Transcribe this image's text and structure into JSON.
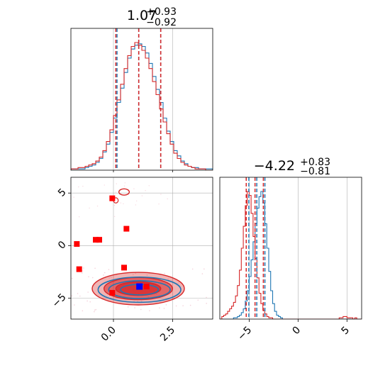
{
  "chart_data": [
    {
      "type": "histogram",
      "panel": "marginal-param1",
      "title": {
        "median": "1.07",
        "upper": "+0.93",
        "lower": "−0.92"
      },
      "xlim": [
        -1.8,
        4.2
      ],
      "bins_left_edge": -1.8,
      "bin_width": 0.15,
      "series": [
        {
          "name": "",
          "color": "#1f77b4",
          "counts": [
            1,
            1,
            1,
            1,
            2,
            3,
            4,
            6,
            9,
            14,
            20,
            29,
            40,
            52,
            63,
            75,
            86,
            93,
            96,
            97,
            95,
            90,
            82,
            72,
            62,
            52,
            40,
            30,
            22,
            15,
            11,
            7,
            5,
            3,
            2,
            2,
            1,
            1,
            1,
            1
          ]
        },
        {
          "name": "",
          "color": "#d62728",
          "counts": [
            1,
            1,
            2,
            2,
            3,
            4,
            5,
            7,
            10,
            15,
            22,
            31,
            42,
            54,
            66,
            78,
            88,
            95,
            98,
            96,
            92,
            86,
            78,
            68,
            58,
            47,
            37,
            28,
            20,
            13,
            9,
            6,
            4,
            3,
            2,
            1,
            1,
            1,
            0,
            0
          ]
        }
      ],
      "quantile_lines": [
        {
          "color": "#1f77b4",
          "values": [
            0.15,
            1.07,
            2.0
          ]
        },
        {
          "color": "#d62728",
          "values": [
            0.1,
            1.07,
            2.0
          ]
        }
      ]
    },
    {
      "type": "histogram",
      "panel": "marginal-param2",
      "title": {
        "median": "−4.22",
        "upper": "+0.83",
        "lower": "−0.81"
      },
      "xlim": [
        -8.0,
        6.5
      ],
      "xticks": [
        "−5",
        "0",
        "5"
      ],
      "xtick_values": [
        -5,
        0,
        5
      ],
      "bins_left_edge": -8.0,
      "bin_width": 0.2,
      "series": [
        {
          "name": "",
          "color": "#1f77b4",
          "counts": [
            0,
            0,
            0,
            0,
            0,
            0,
            0,
            1,
            1,
            2,
            3,
            5,
            8,
            14,
            22,
            33,
            46,
            60,
            74,
            86,
            95,
            99,
            90,
            74,
            55,
            37,
            22,
            12,
            6,
            3,
            2,
            1,
            0,
            0,
            0,
            0,
            0,
            0,
            0,
            0,
            0,
            0,
            0,
            0,
            0,
            0,
            0,
            0,
            0,
            0,
            0,
            0,
            0,
            0,
            0,
            0,
            0,
            0,
            0,
            0,
            0,
            0,
            0,
            0,
            0,
            0,
            0,
            0,
            0,
            0,
            0,
            0,
            0
          ]
        },
        {
          "name": "",
          "color": "#d62728",
          "counts": [
            0,
            2,
            3,
            4,
            6,
            8,
            10,
            13,
            18,
            26,
            38,
            55,
            72,
            88,
            99,
            96,
            82,
            64,
            47,
            32,
            20,
            12,
            7,
            4,
            2,
            1,
            1,
            0,
            0,
            0,
            0,
            0,
            0,
            0,
            0,
            0,
            0,
            0,
            0,
            0,
            0,
            0,
            0,
            0,
            0,
            0,
            0,
            0,
            0,
            0,
            0,
            0,
            0,
            0,
            0,
            0,
            0,
            0,
            0,
            0,
            0,
            1,
            1,
            2,
            2,
            1,
            1,
            1,
            0,
            1,
            0,
            0,
            0
          ]
        }
      ],
      "quantile_lines": [
        {
          "color": "#1f77b4",
          "values": [
            -5.03,
            -4.22,
            -3.39
          ]
        },
        {
          "color": "#d62728",
          "values": [
            -5.3,
            -4.4,
            -3.55
          ]
        }
      ]
    },
    {
      "type": "contour-scatter",
      "panel": "joint",
      "xlim": [
        -1.8,
        4.2
      ],
      "ylim": [
        -7.0,
        6.5
      ],
      "xticks": [
        "0.0",
        "2.5"
      ],
      "xtick_values": [
        0.0,
        2.5
      ],
      "yticks": [
        "−5",
        "0",
        "5"
      ],
      "ytick_values": [
        -5,
        0,
        5
      ],
      "contours": {
        "red_filled_levels": [
          {
            "cx": 1.05,
            "cy": -4.1,
            "rx": 1.95,
            "ry": 1.55,
            "opacity": 0.35
          },
          {
            "cx": 1.05,
            "cy": -4.1,
            "rx": 1.45,
            "ry": 1.05,
            "opacity": 0.55
          },
          {
            "cx": 1.05,
            "cy": -4.1,
            "rx": 0.95,
            "ry": 0.65,
            "opacity": 0.75
          }
        ],
        "blue_levels": [
          {
            "cx": 1.1,
            "cy": -4.2,
            "rx": 1.75,
            "ry": 1.2
          },
          {
            "cx": 1.1,
            "cy": -4.2,
            "rx": 1.3,
            "ry": 0.85
          },
          {
            "cx": 1.1,
            "cy": -4.2,
            "rx": 0.8,
            "ry": 0.5
          }
        ],
        "red_island": {
          "cx": 0.45,
          "cy": 5.1,
          "rx": 0.22,
          "ry": 0.3
        },
        "red_island_2": {
          "cx": 0.1,
          "cy": 4.3,
          "rx": 0.1,
          "ry": 0.25
        }
      },
      "red_points": [
        {
          "x": -1.55,
          "y": 0.15
        },
        {
          "x": -1.45,
          "y": -2.25
        },
        {
          "x": -0.75,
          "y": 0.55
        },
        {
          "x": -0.6,
          "y": 0.55
        },
        {
          "x": -0.05,
          "y": 4.5
        },
        {
          "x": 0.55,
          "y": 1.6
        },
        {
          "x": 0.45,
          "y": -2.1
        },
        {
          "x": -0.05,
          "y": -4.5
        },
        {
          "x": 1.4,
          "y": -3.9
        }
      ],
      "blue_points": [
        {
          "x": 1.1,
          "y": -3.9
        }
      ]
    }
  ],
  "colors": {
    "blue": "#1f77b4",
    "red": "#d62728",
    "marker_red": "#ff0000",
    "marker_blue": "#0000ff",
    "grid": "#b0b0b0"
  }
}
